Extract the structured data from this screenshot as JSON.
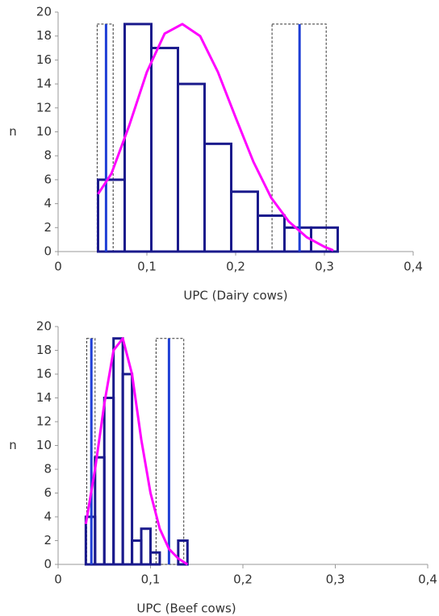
{
  "chart_data": [
    {
      "type": "histogram",
      "x_label": "UPC (Dairy cows)",
      "y_label": "n",
      "bins": [
        0.045,
        0.075,
        0.105,
        0.135,
        0.165,
        0.195,
        0.225,
        0.255,
        0.285,
        0.315
      ],
      "counts": [
        6,
        19,
        17,
        14,
        9,
        5,
        3,
        2,
        2
      ],
      "color": "#1a1a8c",
      "curve": {
        "color": "#ff00ff",
        "x": [
          0.045,
          0.06,
          0.08,
          0.1,
          0.12,
          0.14,
          0.16,
          0.18,
          0.2,
          0.22,
          0.24,
          0.26,
          0.28,
          0.3,
          0.31
        ],
        "y": [
          4.8,
          6.5,
          10.5,
          15,
          18.2,
          19,
          18,
          15,
          11.2,
          7.5,
          4.5,
          2.5,
          1.2,
          0.4,
          0.1
        ]
      },
      "lines": {
        "color": "#1f3fd6",
        "items": [
          {
            "x": 0.054,
            "top": 19
          },
          {
            "x": 0.272,
            "top": 19
          }
        ]
      },
      "intervals": [
        {
          "low": 0.044,
          "high": 0.062,
          "top": 19
        },
        {
          "low": 0.241,
          "high": 0.302,
          "top": 19
        }
      ],
      "xlim": [
        0,
        0.4
      ],
      "xticks": [
        0,
        {
          "value": 0.1,
          "label": "0,1"
        },
        {
          "value": 0.2,
          "label": "0,2"
        },
        {
          "value": 0.3,
          "label": "0,3"
        },
        {
          "value": 0.4,
          "label": "0,4"
        }
      ],
      "ylim": [
        0,
        20
      ],
      "yticks": [
        0,
        2,
        4,
        6,
        8,
        10,
        12,
        14,
        16,
        18,
        20
      ]
    },
    {
      "type": "histogram",
      "x_label": "UPC (Beef cows)",
      "y_label": "n",
      "bins": [
        0.03,
        0.04,
        0.05,
        0.06,
        0.07,
        0.08,
        0.09,
        0.1,
        0.11,
        0.12,
        0.13,
        0.14
      ],
      "counts": [
        4,
        9,
        14,
        19,
        16,
        2,
        3,
        1,
        0,
        0,
        2
      ],
      "color": "#1a1a8c",
      "curve": {
        "color": "#ff00ff",
        "x": [
          0.03,
          0.04,
          0.05,
          0.06,
          0.07,
          0.08,
          0.09,
          0.1,
          0.11,
          0.12,
          0.13,
          0.14
        ],
        "y": [
          3.4,
          8,
          13.5,
          18,
          19,
          16,
          10.5,
          6,
          3,
          1.3,
          0.5,
          0
        ]
      },
      "lines": {
        "color": "#1f3fd6",
        "items": [
          {
            "x": 0.036,
            "top": 19
          },
          {
            "x": 0.12,
            "top": 19
          }
        ]
      },
      "intervals": [
        {
          "low": 0.031,
          "high": 0.04,
          "top": 19
        },
        {
          "low": 0.106,
          "high": 0.136,
          "top": 19
        }
      ],
      "xlim": [
        0,
        0.4
      ],
      "xticks": [
        0,
        {
          "value": 0.1,
          "label": "0,1"
        },
        {
          "value": 0.2,
          "label": "0,2"
        },
        {
          "value": 0.3,
          "label": "0,3"
        },
        {
          "value": 0.4,
          "label": "0,4"
        }
      ],
      "ylim": [
        0,
        20
      ],
      "yticks": [
        0,
        2,
        4,
        6,
        8,
        10,
        12,
        14,
        16,
        18,
        20
      ]
    }
  ]
}
